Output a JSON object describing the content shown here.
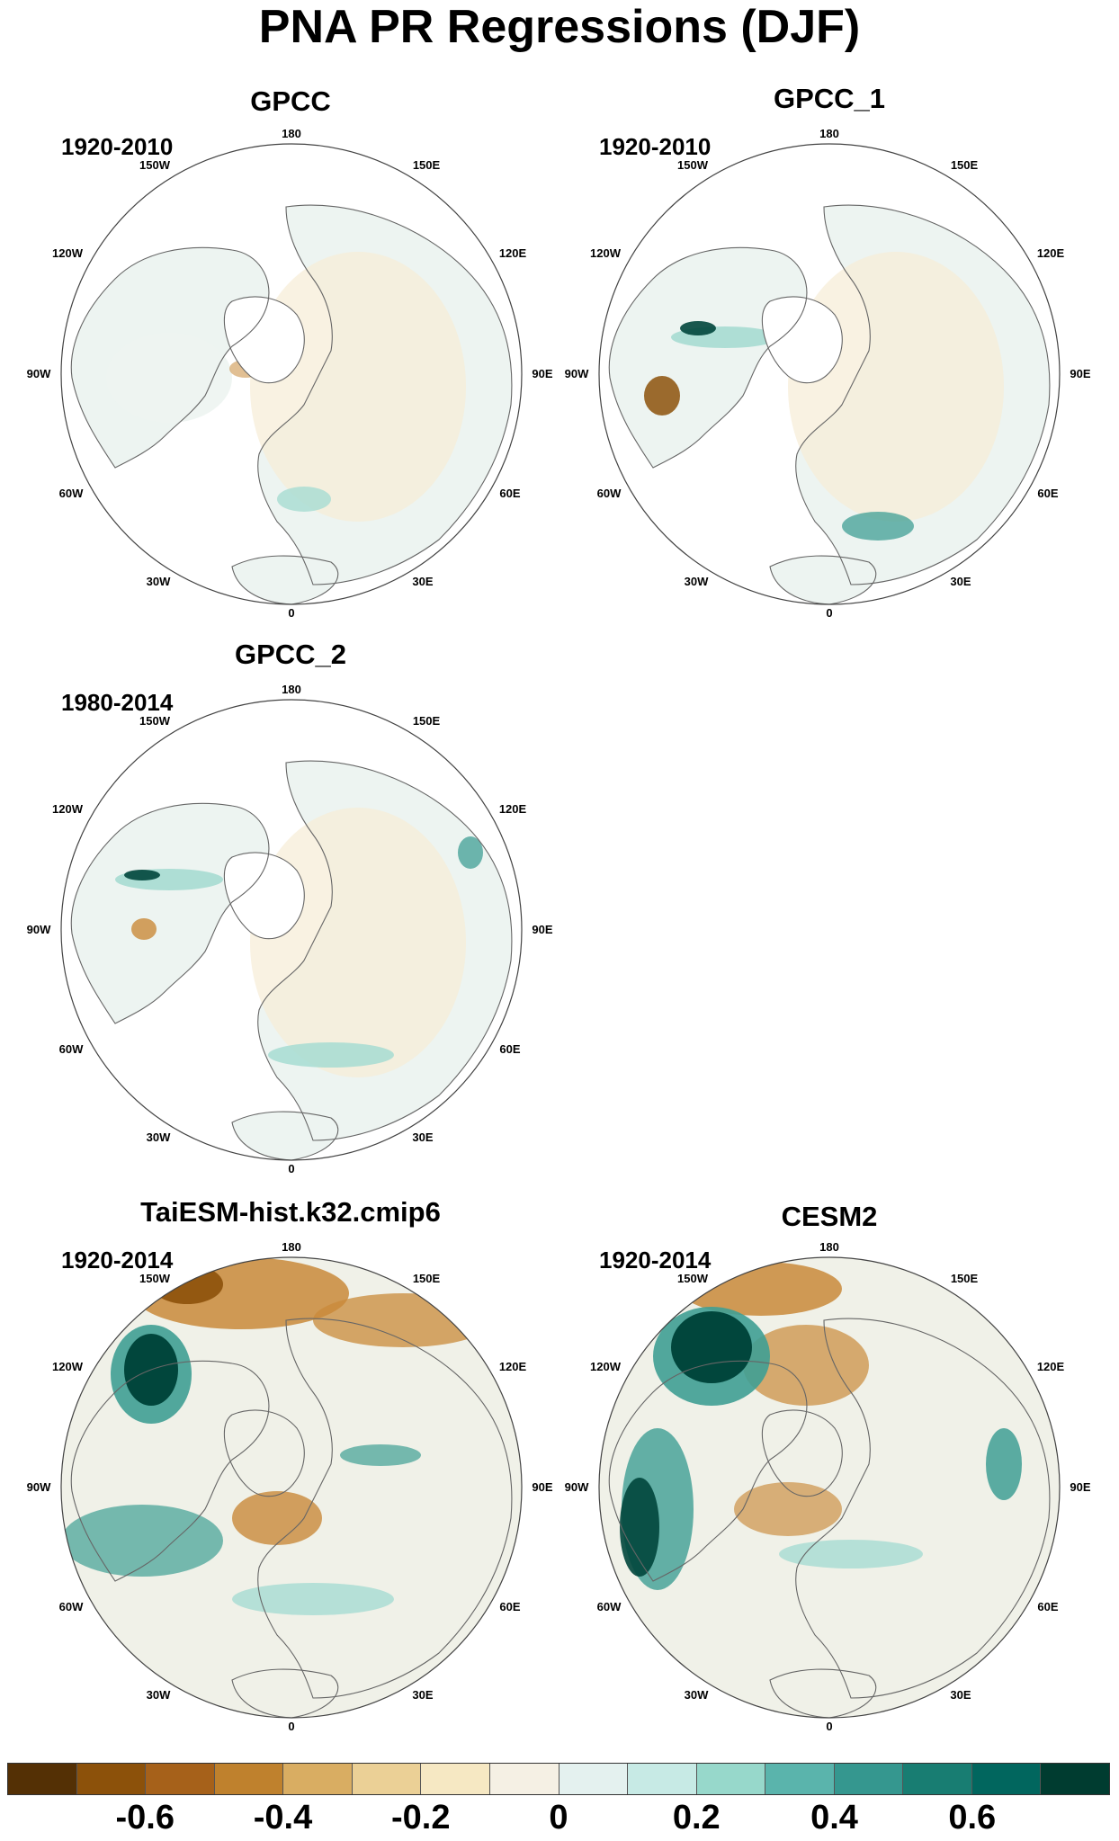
{
  "figure": {
    "title": "PNA PR Regressions (DJF)"
  },
  "panels": [
    {
      "title": "GPCC",
      "period": "1920-2010",
      "style": "obs1"
    },
    {
      "title": "GPCC_1",
      "period": "1920-2010",
      "style": "obs2"
    },
    {
      "title": "GPCC_2",
      "period": "1980-2014",
      "style": "obs3"
    },
    {
      "title": "TaiESM-hist.k32.cmip6",
      "period": "1920-2014",
      "style": "model1"
    },
    {
      "title": "CESM2",
      "period": "1920-2014",
      "style": "model2"
    }
  ],
  "longitude_labels": {
    "lon_180": "180",
    "lon_150w": "150W",
    "lon_150e": "150E",
    "lon_120w": "120W",
    "lon_120e": "120E",
    "lon_90w": "90W",
    "lon_90e": "90E",
    "lon_60w": "60W",
    "lon_60e": "60E",
    "lon_30w": "30W",
    "lon_30e": "30E",
    "lon_0": "0"
  },
  "colorbar": {
    "colors": [
      "#543005",
      "#8c510a",
      "#a6611a",
      "#bf812d",
      "#d9ad62",
      "#ebd096",
      "#f6e8c3",
      "#f5f0e4",
      "#e4f1ef",
      "#c7eae5",
      "#97d8cb",
      "#5ab4ac",
      "#35978f",
      "#187d72",
      "#01665e",
      "#003c30"
    ],
    "labels": [
      "-0.6",
      "-0.4",
      "-0.2",
      "0",
      "0.2",
      "0.4",
      "0.6"
    ],
    "label_values": [
      -0.6,
      -0.4,
      -0.2,
      0,
      0.2,
      0.4,
      0.6
    ],
    "min": -0.8,
    "max": 0.8
  },
  "palette": {
    "land_neutral": "#edf4f1",
    "land_warm": "#f6ecd6",
    "brown_mid": "#c98a3a",
    "brown_dark": "#8c510a",
    "teal_light": "#a6dcd2",
    "teal_mid": "#3f9f94",
    "teal_dark": "#01463c",
    "coast": "#666666"
  }
}
